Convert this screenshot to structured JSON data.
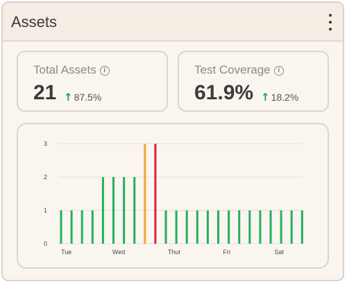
{
  "header": {
    "title": "Assets",
    "menu_icon": "more-vertical-icon"
  },
  "stats": [
    {
      "label": "Total Assets",
      "value": "21",
      "delta": "87.5%",
      "trend": "up",
      "info_icon": "info-icon"
    },
    {
      "label": "Test Coverage",
      "value": "61.9%",
      "delta": "18.2%",
      "trend": "up",
      "info_icon": "info-icon"
    }
  ],
  "colors": {
    "bar_default": "#21b05e",
    "bar_highlight_orange": "#f5a43a",
    "bar_highlight_red": "#de1f3c",
    "trend_up": "#16a34a",
    "gridline": "#e3deda"
  },
  "chart_data": {
    "type": "bar",
    "ylim": [
      0,
      3
    ],
    "y_ticks": [
      "0",
      "1",
      "2",
      "3"
    ],
    "x_tick_labels": [
      "Tue",
      "Wed",
      "Thur",
      "Fri",
      "Sat"
    ],
    "values": [
      1,
      1,
      1,
      1,
      2,
      2,
      2,
      2,
      3,
      3,
      1,
      1,
      1,
      1,
      1,
      1,
      1,
      1,
      1,
      1,
      1,
      1,
      1,
      1
    ],
    "bar_colors": [
      "green",
      "green",
      "green",
      "green",
      "green",
      "green",
      "green",
      "green",
      "orange",
      "red",
      "green",
      "green",
      "green",
      "green",
      "green",
      "green",
      "green",
      "green",
      "green",
      "green",
      "green",
      "green",
      "green",
      "green"
    ],
    "x_label_bar_index": [
      0,
      5.5,
      10.8,
      15.8,
      20.8
    ],
    "grid": true
  }
}
